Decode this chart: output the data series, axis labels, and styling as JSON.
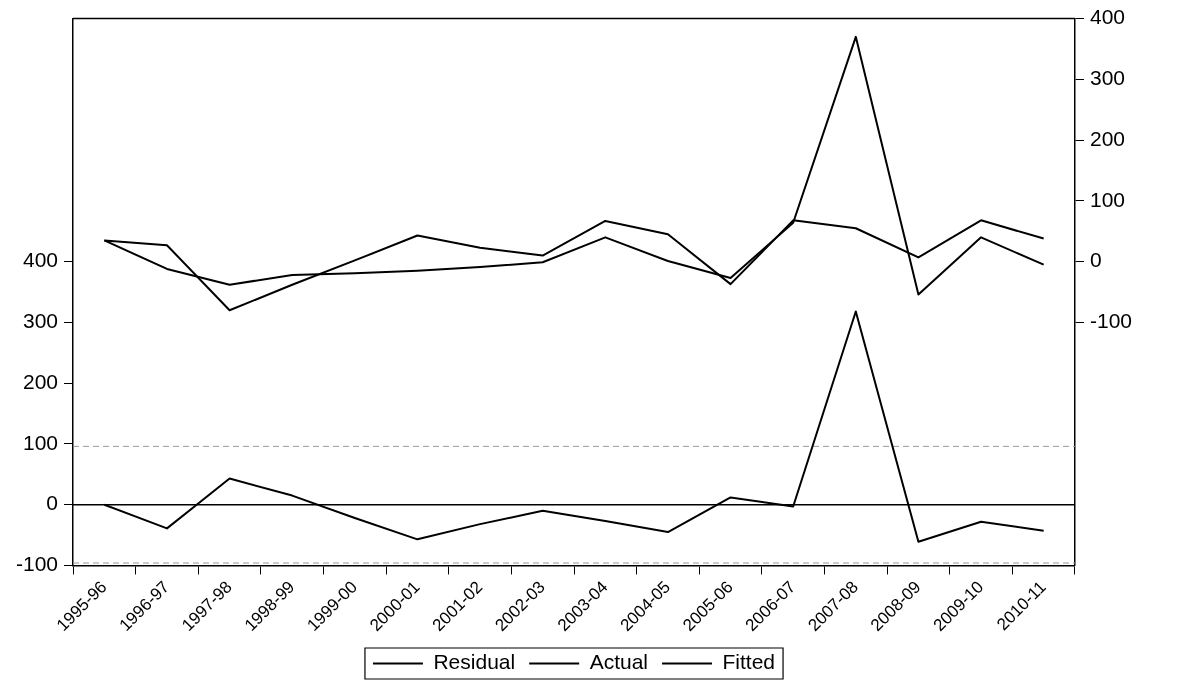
{
  "chart_data": {
    "type": "line",
    "categories": [
      "1995-96",
      "1996-97",
      "1997-98",
      "1998-99",
      "1999-00",
      "2000-01",
      "2001-02",
      "2002-03",
      "2003-04",
      "2004-05",
      "2005-06",
      "2006-07",
      "2007-08",
      "2008-09",
      "2009-10",
      "2010-11"
    ],
    "series": [
      {
        "name": "Residual",
        "color": "#000000",
        "values": [
          0,
          -39,
          43,
          15,
          -22,
          -57,
          -32,
          -10,
          -27,
          -45,
          12,
          -3,
          318,
          -61,
          -28,
          -43
        ]
      },
      {
        "name": "Actual",
        "color": "#000000",
        "axis": "y2",
        "values": [
          35,
          -12,
          -38,
          -22,
          -19,
          -15,
          -9,
          -1,
          40,
          1,
          -27,
          64,
          370,
          -54,
          40,
          -5
        ]
      },
      {
        "name": "Fitted",
        "color": "#000000",
        "axis": "y2",
        "values": [
          35,
          27,
          -80,
          -38,
          2,
          43,
          23,
          10,
          67,
          45,
          -37,
          68,
          55,
          7,
          68,
          38
        ]
      }
    ],
    "ylim": [
      -100,
      800
    ],
    "yticks": [
      -100,
      0,
      100,
      200,
      300,
      400
    ],
    "y2lim": [
      -500,
      400
    ],
    "y2ticks": [
      -100,
      0,
      100,
      200,
      300,
      400
    ],
    "ref_lines": [
      {
        "axis": "y",
        "value": 96,
        "color": "#9a9a9a",
        "line_style": "dashed"
      },
      {
        "axis": "y",
        "value": 0,
        "color": "#000000",
        "line_style": "solid"
      },
      {
        "axis": "y",
        "value": -96,
        "color": "#9a9a9a",
        "line_style": "dashed"
      }
    ],
    "grid": false,
    "legend": "bottom",
    "marker": "none",
    "line_style": "solid"
  }
}
